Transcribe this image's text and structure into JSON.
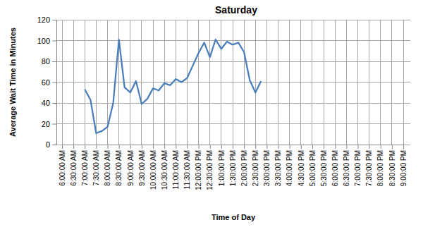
{
  "chart_data": {
    "type": "line",
    "title": "Saturday",
    "xlabel": "Time of Day",
    "ylabel": "Average Wait Time in Minutes",
    "categories": [
      "6:00:00 AM",
      null,
      "6:30:00 AM",
      null,
      "7:00:00 AM",
      null,
      "7:30:00 AM",
      null,
      "8:00:00 AM",
      null,
      "8:30:00 AM",
      null,
      "9:00:00 AM",
      null,
      "9:30:00 AM",
      null,
      "10:00:00 AM",
      null,
      "10:30:00 AM",
      null,
      "11:00:00 AM",
      null,
      "11:30:00 AM",
      null,
      "12:00:00 PM",
      null,
      "12:30:00 PM",
      null,
      "1:00:00 PM",
      null,
      "1:30:00 PM",
      null,
      "2:00:00 PM",
      null,
      "2:30:00 PM",
      null,
      "3:00:00 PM",
      null,
      "3:30:00 PM",
      null,
      "4:00:00 PM",
      null,
      "4:30:00 PM",
      null,
      "5:00:00 PM",
      null,
      "5:30:00 PM",
      null,
      "6:00:00 PM",
      null,
      "6:30:00 PM",
      null,
      "7:00:00 PM",
      null,
      "7:30:00 PM",
      null,
      "8:00:00 PM",
      null,
      "8:30:00 PM",
      null,
      "9:00:00 PM"
    ],
    "values": [
      null,
      null,
      null,
      null,
      53,
      43,
      11,
      13,
      17,
      40,
      101,
      55,
      50,
      61,
      39,
      44,
      54,
      52,
      59,
      57,
      63,
      60,
      64,
      76,
      88,
      98,
      84,
      101,
      92,
      99,
      96,
      98,
      89,
      62,
      50,
      61,
      null,
      null,
      null,
      null,
      null,
      null,
      null,
      null,
      null,
      null,
      null,
      null,
      null,
      null,
      null,
      null,
      null,
      null,
      null,
      null,
      null,
      null,
      null,
      null,
      null
    ],
    "color": "#4a7ebb",
    "ylim": [
      0,
      120
    ],
    "yticks": [
      0,
      20,
      40,
      60,
      80,
      100,
      120
    ],
    "grid": true
  }
}
